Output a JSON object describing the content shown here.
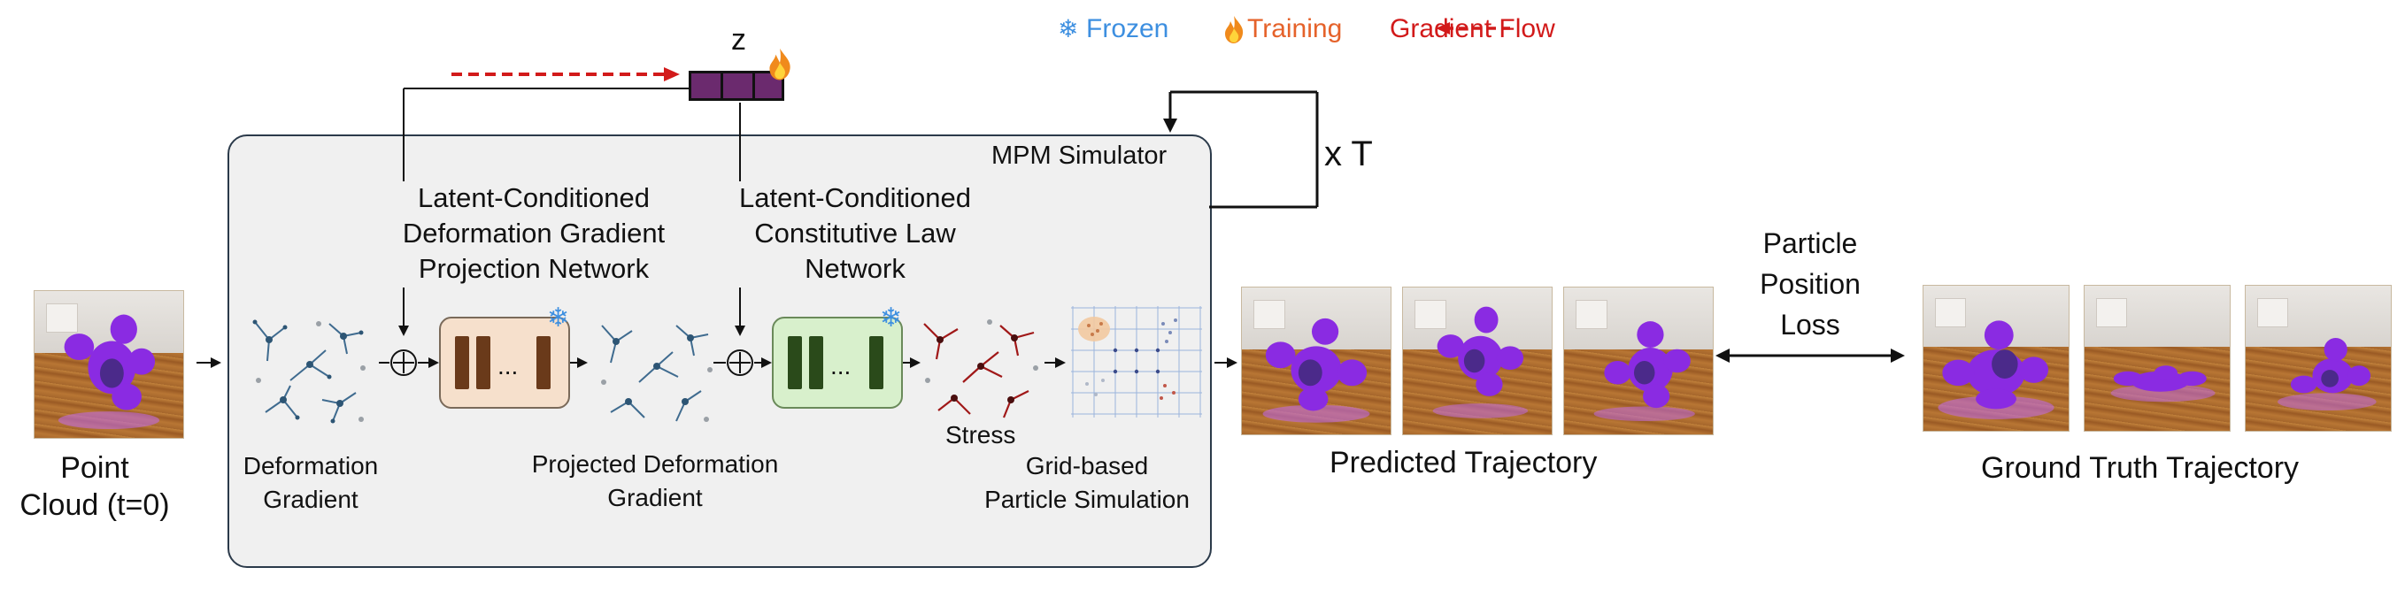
{
  "legend": {
    "frozen_label": "Frozen",
    "training_label": "Training",
    "gradient_flow_label": "Gradient Flow",
    "colors": {
      "frozen": "#3d8fe0",
      "training": "#e5622a",
      "gradient": "#d21a1a"
    }
  },
  "latent": {
    "label": "z"
  },
  "loop": {
    "label": "x T"
  },
  "simulator": {
    "title": "MPM Simulator"
  },
  "input": {
    "label_line1": "Point",
    "label_line2": "Cloud (t=0)"
  },
  "networks": {
    "projection_title_l1": "Latent-Conditioned",
    "projection_title_l2": "Deformation Gradient",
    "projection_title_l3": "Projection Network",
    "constitutive_title_l1": "Latent-Conditioned",
    "constitutive_title_l2": "Constitutive Law",
    "constitutive_title_l3": "Network",
    "ellipsis": "..."
  },
  "stages": {
    "deformation_l1": "Deformation",
    "deformation_l2": "Gradient",
    "projected_l1": "Projected Deformation",
    "projected_l2": "Gradient",
    "stress": "Stress",
    "grid_l1": "Grid-based",
    "grid_l2": "Particle Simulation"
  },
  "outputs": {
    "predicted_label": "Predicted Trajectory",
    "ground_truth_label": "Ground Truth Trajectory",
    "loss_l1": "Particle",
    "loss_l2": "Position",
    "loss_l3": "Loss"
  },
  "icons": {
    "frozen": "snowflake-icon",
    "training": "flame-icon",
    "plus": "circled-plus-icon"
  }
}
